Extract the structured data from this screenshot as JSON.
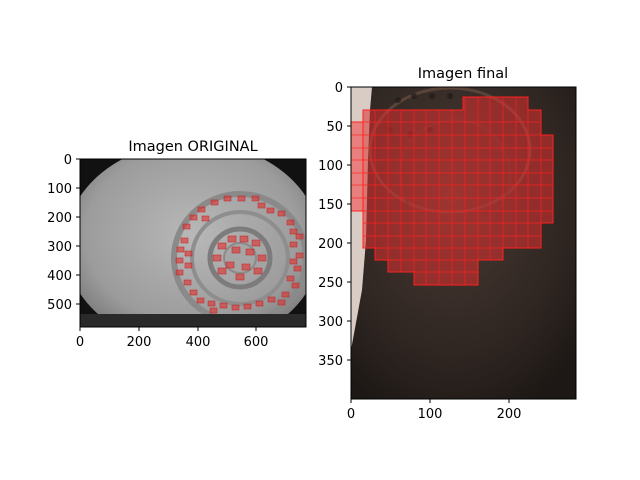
{
  "figure": {
    "subplots": [
      {
        "title": "Imagen ORIGINAL",
        "x_ticks": [
          "0",
          "200",
          "400",
          "600"
        ],
        "y_ticks": [
          "0",
          "100",
          "200",
          "300",
          "400",
          "500"
        ]
      },
      {
        "title": "Imagen final",
        "x_ticks": [
          "0",
          "100",
          "200"
        ],
        "y_ticks": [
          "0",
          "50",
          "100",
          "150",
          "200",
          "250",
          "300",
          "350"
        ]
      }
    ],
    "colors": {
      "overlay": "#e03030",
      "grid_line": "#ff2020",
      "photo_bg": "#3a2e28"
    }
  }
}
